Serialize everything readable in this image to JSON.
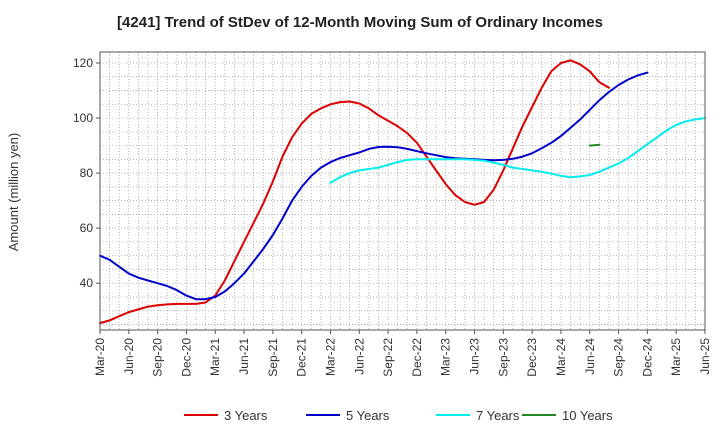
{
  "chart_data": {
    "type": "line",
    "title": "[4241]  Trend of StDev of 12-Month Moving Sum of Ordinary Incomes",
    "xlabel": "",
    "ylabel": "Amount (million yen)",
    "x_ticks": [
      "Mar-20",
      "Jun-20",
      "Sep-20",
      "Dec-20",
      "Mar-21",
      "Jun-21",
      "Sep-21",
      "Dec-21",
      "Mar-22",
      "Jun-22",
      "Sep-22",
      "Dec-22",
      "Mar-23",
      "Jun-23",
      "Sep-23",
      "Dec-23",
      "Mar-24",
      "Jun-24",
      "Sep-24",
      "Dec-24",
      "Mar-25",
      "Jun-25"
    ],
    "y_ticks": [
      40,
      60,
      80,
      100,
      120
    ],
    "ylim": [
      23,
      124
    ],
    "grid": true,
    "legend_position": "bottom",
    "series": [
      {
        "name": "3 Years",
        "color": "#dd0000",
        "start_index": 0,
        "values": [
          25.5,
          26.5,
          28,
          29.5,
          30.5,
          31.5,
          32,
          32.3,
          32.5,
          32.5,
          32.5,
          33,
          35.5,
          41,
          48,
          55,
          62,
          69,
          77,
          86,
          93,
          98,
          101.5,
          103.5,
          105,
          105.8,
          106,
          105.3,
          103.5,
          101,
          99,
          97,
          94.5,
          91,
          86,
          81,
          76,
          72,
          69.5,
          68.5,
          69.5,
          74,
          81,
          89,
          97,
          104,
          111,
          117,
          120,
          121,
          119.5,
          117,
          113,
          111
        ]
      },
      {
        "name": "5 Years",
        "color": "#0000cc",
        "start_index": 0,
        "values": [
          50,
          48.5,
          46,
          43.5,
          42,
          41,
          40,
          39,
          37.5,
          35.5,
          34.2,
          34.2,
          35,
          37,
          40,
          43.5,
          48,
          52.5,
          57.5,
          63.5,
          70,
          75,
          79,
          82,
          84,
          85.5,
          86.5,
          87.5,
          88.8,
          89.5,
          89.6,
          89.4,
          88.8,
          88,
          87.2,
          86.5,
          85.8,
          85.4,
          85.2,
          85,
          84.8,
          84.7,
          84.8,
          85.2,
          86,
          87.2,
          89,
          91,
          93.5,
          96.5,
          99.5,
          103,
          106.5,
          109.5,
          112,
          114,
          115.5,
          116.5
        ]
      },
      {
        "name": "7 Years",
        "color": "#00eeee",
        "start_index": 24,
        "values": [
          76.5,
          78.5,
          80,
          81,
          81.5,
          82,
          83,
          84,
          84.8,
          85,
          85,
          85,
          85,
          85,
          85,
          84.8,
          84.5,
          83.8,
          83,
          82,
          81.5,
          81,
          80.5,
          79.8,
          79,
          78.5,
          78.8,
          79.3,
          80.5,
          82,
          83.5,
          85.5,
          88,
          90.5,
          93,
          95.5,
          97.5,
          98.8,
          99.5,
          100
        ]
      },
      {
        "name": "10 Years",
        "color": "#228822",
        "start_index": 51,
        "values": [
          90,
          90.3
        ]
      }
    ]
  }
}
